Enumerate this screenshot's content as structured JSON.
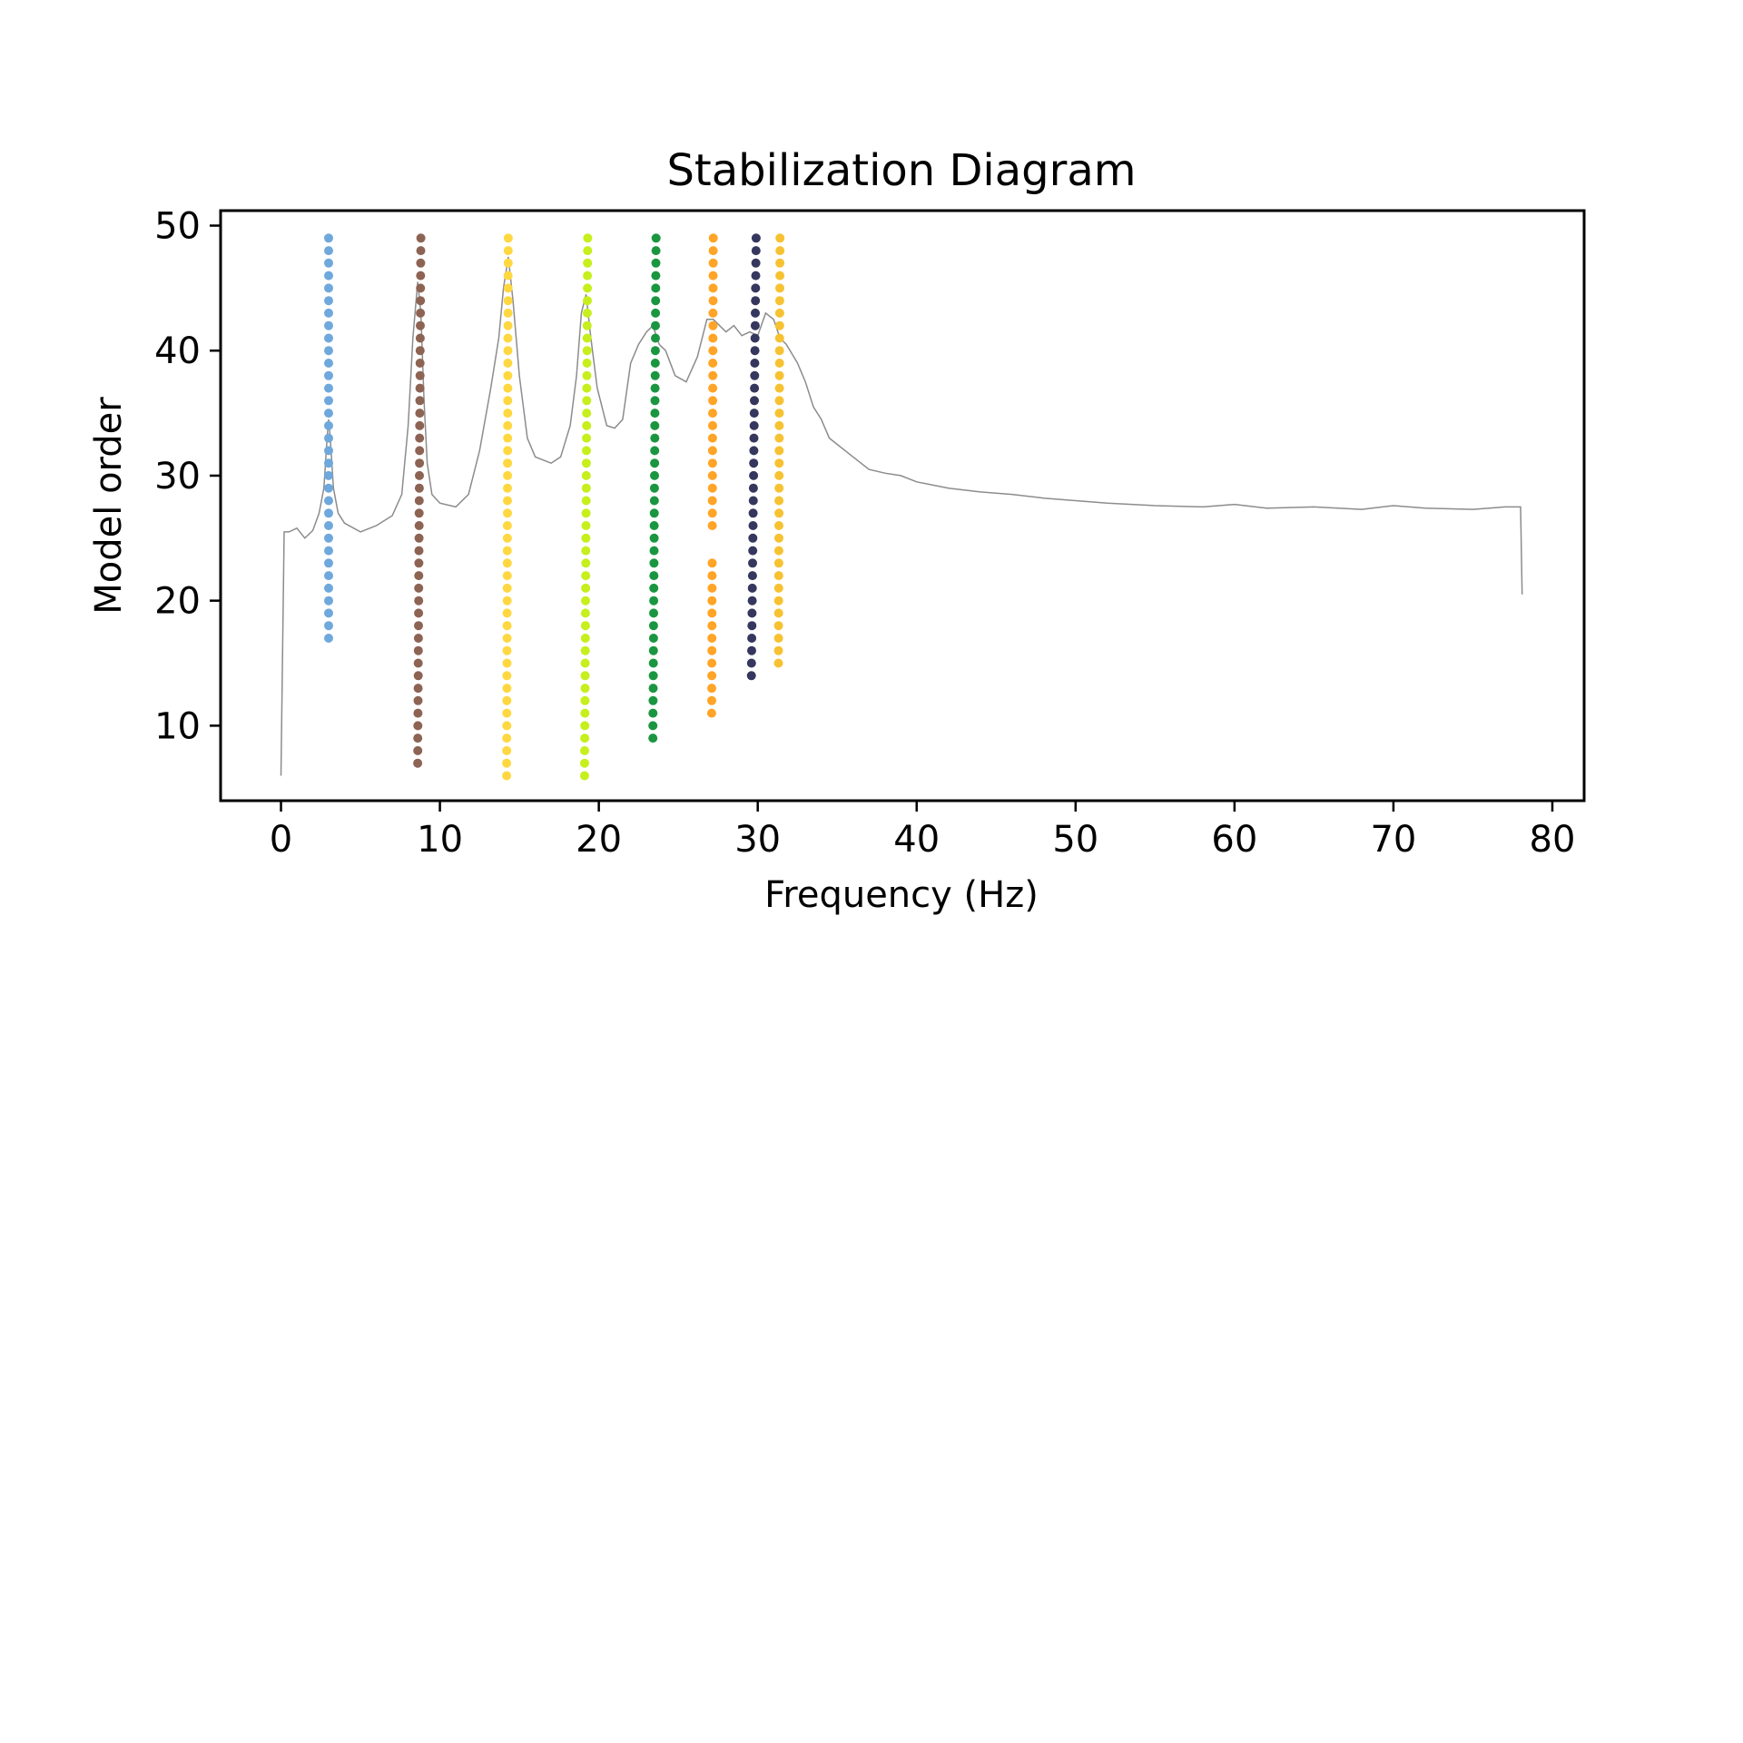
{
  "chart_data": {
    "type": "scatter",
    "title": "Stabilization Diagram",
    "xlabel": "Frequency (Hz)",
    "ylabel": "Model order",
    "xlim": [
      -3.8,
      82
    ],
    "ylim": [
      4,
      51.2
    ],
    "xticks": [
      0,
      10,
      20,
      30,
      40,
      50,
      60,
      70,
      80
    ],
    "yticks": [
      10,
      20,
      30,
      40,
      50
    ],
    "grid": false,
    "legend": "none",
    "series": [
      {
        "color": "#6fa8dc",
        "x": [
          3.0,
          3.0
        ],
        "order_range": [
          17,
          49
        ],
        "gaps": []
      },
      {
        "color": "#8d6354",
        "x": [
          8.6,
          8.8
        ],
        "order_range": [
          7,
          49
        ],
        "gaps": []
      },
      {
        "color": "#ffd740",
        "x": [
          14.2,
          14.3
        ],
        "order_range": [
          6,
          49
        ],
        "gaps": []
      },
      {
        "color": "#c6ef1c",
        "x": [
          19.1,
          19.3
        ],
        "order_range": [
          6,
          49
        ],
        "gaps": []
      },
      {
        "color": "#1b9640",
        "x": [
          23.4,
          23.6
        ],
        "order_range": [
          9,
          49
        ],
        "gaps": []
      },
      {
        "color": "#ffa426",
        "x": [
          27.1,
          27.2
        ],
        "order_range": [
          11,
          49
        ],
        "gaps": [
          [
            24,
            25
          ]
        ]
      },
      {
        "color": "#36375e",
        "x": [
          29.6,
          29.9
        ],
        "order_range": [
          14,
          49
        ],
        "gaps": []
      },
      {
        "color": "#f7c232",
        "x": [
          31.3,
          31.4
        ],
        "order_range": [
          15,
          49
        ],
        "gaps": []
      }
    ],
    "spectrum": {
      "color": "#8c8c8c",
      "x": [
        0,
        0.2,
        0.5,
        1,
        1.5,
        2,
        2.4,
        2.7,
        2.9,
        3.0,
        3.1,
        3.3,
        3.6,
        4,
        5,
        6,
        7,
        7.6,
        8.0,
        8.3,
        8.6,
        8.8,
        9.0,
        9.2,
        9.5,
        10,
        11,
        11.8,
        12.5,
        13.2,
        13.7,
        14.0,
        14.3,
        14.6,
        15.0,
        15.5,
        16,
        17,
        17.6,
        18.2,
        18.6,
        18.9,
        19.2,
        19.5,
        19.9,
        20.5,
        21,
        21.5,
        22,
        22.5,
        23,
        23.4,
        23.8,
        24.2,
        24.8,
        25.5,
        26.2,
        26.8,
        27.2,
        27.6,
        28,
        28.5,
        29,
        29.5,
        30,
        30.5,
        31,
        31.4,
        31.8,
        32.5,
        33,
        33.5,
        34,
        34.5,
        35,
        36,
        37,
        38,
        39,
        40,
        42,
        44,
        46,
        48,
        50,
        52,
        55,
        58,
        60,
        62,
        65,
        68,
        70,
        72,
        75,
        77,
        78,
        78.1
      ],
      "y": [
        6,
        25.5,
        25.5,
        25.8,
        25,
        25.6,
        27,
        29,
        33,
        34.5,
        33,
        29,
        27,
        26.2,
        25.5,
        26,
        26.8,
        28.5,
        34,
        41,
        45.5,
        43,
        36,
        31,
        28.5,
        27.8,
        27.5,
        28.5,
        32,
        37,
        41,
        45,
        47.5,
        44,
        38,
        33,
        31.5,
        31,
        31.5,
        34,
        38,
        43,
        44.5,
        41,
        37,
        34,
        33.8,
        34.5,
        39,
        40.5,
        41.5,
        42,
        40.5,
        40,
        38,
        37.5,
        39.5,
        42.5,
        42.5,
        42,
        41.5,
        42,
        41.2,
        41.5,
        41.2,
        43,
        42.5,
        41,
        40.5,
        39,
        37.5,
        35.5,
        34.5,
        33,
        32.5,
        31.5,
        30.5,
        30.2,
        30,
        29.5,
        29,
        28.7,
        28.5,
        28.2,
        28,
        27.8,
        27.6,
        27.5,
        27.7,
        27.4,
        27.5,
        27.3,
        27.6,
        27.4,
        27.3,
        27.5,
        27.5,
        20.5
      ]
    }
  }
}
